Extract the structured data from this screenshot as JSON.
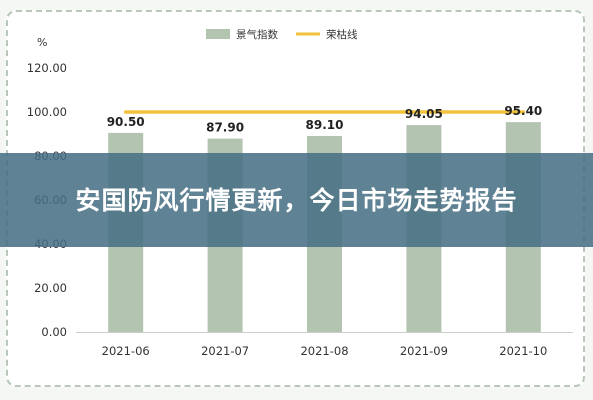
{
  "headline": "安国防风行情更新，今日市场走势报告",
  "chart_data": {
    "type": "bar",
    "ylabel": "%",
    "ylim": [
      0,
      120
    ],
    "y_ticks": [
      "0.00",
      "20.00",
      "40.00",
      "60.00",
      "80.00",
      "100.00",
      "120.00"
    ],
    "categories": [
      "2021-06",
      "2021-07",
      "2021-08",
      "2021-09",
      "2021-10"
    ],
    "series": [
      {
        "name": "景气指数",
        "type": "bar",
        "color": "#b3c4b0",
        "values": [
          90.5,
          87.9,
          89.1,
          94.05,
          95.4
        ],
        "labels": [
          "90.50",
          "87.90",
          "89.10",
          "94.05",
          "95.40"
        ]
      },
      {
        "name": "荣枯线",
        "type": "line",
        "color": "#f2c23c",
        "values": [
          100,
          100,
          100,
          100,
          100
        ]
      }
    ],
    "grid": false,
    "legend_position": "top"
  }
}
